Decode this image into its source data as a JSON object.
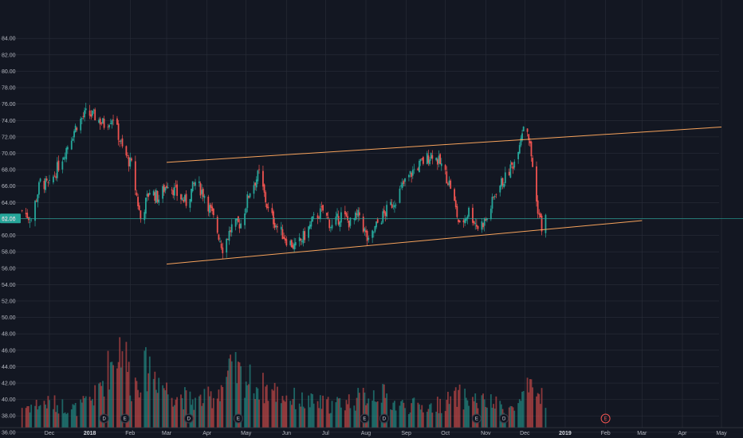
{
  "chart_data": {
    "type": "candlestick",
    "title": "",
    "xlabel": "",
    "ylabel": "",
    "ylim": [
      35.5,
      88
    ],
    "y_ticks": [
      "36.00",
      "38.00",
      "40.00",
      "42.00",
      "44.00",
      "46.00",
      "48.00",
      "50.00",
      "52.00",
      "54.00",
      "56.00",
      "58.00",
      "60.00",
      "62.00",
      "64.00",
      "66.00",
      "68.00",
      "70.00",
      "72.00",
      "74.00",
      "76.00",
      "78.00",
      "80.00",
      "82.00",
      "84.00"
    ],
    "x_ticks": [
      {
        "label": "Dec",
        "date": "2017-12-01"
      },
      {
        "label": "2018",
        "date": "2018-01-01",
        "year": true
      },
      {
        "label": "Feb",
        "date": "2018-02-01"
      },
      {
        "label": "Mar",
        "date": "2018-03-01"
      },
      {
        "label": "Apr",
        "date": "2018-04-01"
      },
      {
        "label": "May",
        "date": "2018-05-01"
      },
      {
        "label": "Jun",
        "date": "2018-06-01"
      },
      {
        "label": "Jul",
        "date": "2018-07-01"
      },
      {
        "label": "Aug",
        "date": "2018-08-01"
      },
      {
        "label": "Sep",
        "date": "2018-09-01"
      },
      {
        "label": "Oct",
        "date": "2018-10-01"
      },
      {
        "label": "Nov",
        "date": "2018-11-01"
      },
      {
        "label": "Dec",
        "date": "2018-12-01"
      },
      {
        "label": "2019",
        "date": "2019-01-01",
        "year": true
      },
      {
        "label": "Feb",
        "date": "2019-02-01"
      },
      {
        "label": "Mar",
        "date": "2019-03-01"
      },
      {
        "label": "Apr",
        "date": "2019-04-01"
      },
      {
        "label": "May",
        "date": "2019-05-01"
      }
    ],
    "last_price": "62.06",
    "price_path": [
      [
        "2017-11-10",
        63.0
      ],
      [
        "2017-11-17",
        62.0
      ],
      [
        "2017-11-24",
        66.5
      ],
      [
        "2017-12-01",
        66.0
      ],
      [
        "2017-12-08",
        68.5
      ],
      [
        "2017-12-15",
        71.0
      ],
      [
        "2017-12-22",
        73.5
      ],
      [
        "2017-12-29",
        74.8
      ],
      [
        "2018-01-05",
        74.5
      ],
      [
        "2018-01-12",
        73.5
      ],
      [
        "2018-01-19",
        74.5
      ],
      [
        "2018-01-26",
        70.5
      ],
      [
        "2018-02-02",
        68.5
      ],
      [
        "2018-02-09",
        62.0
      ],
      [
        "2018-02-16",
        65.5
      ],
      [
        "2018-02-23",
        64.5
      ],
      [
        "2018-03-02",
        66.5
      ],
      [
        "2018-03-09",
        65.0
      ],
      [
        "2018-03-16",
        64.0
      ],
      [
        "2018-03-23",
        66.5
      ],
      [
        "2018-03-30",
        65.0
      ],
      [
        "2018-04-06",
        62.0
      ],
      [
        "2018-04-13",
        58.5
      ],
      [
        "2018-04-20",
        61.0
      ],
      [
        "2018-04-27",
        61.5
      ],
      [
        "2018-05-04",
        65.5
      ],
      [
        "2018-05-11",
        67.5
      ],
      [
        "2018-05-18",
        63.0
      ],
      [
        "2018-05-25",
        61.0
      ],
      [
        "2018-06-01",
        59.5
      ],
      [
        "2018-06-08",
        58.5
      ],
      [
        "2018-06-15",
        60.0
      ],
      [
        "2018-06-22",
        62.0
      ],
      [
        "2018-06-29",
        63.0
      ],
      [
        "2018-07-06",
        61.0
      ],
      [
        "2018-07-13",
        62.5
      ],
      [
        "2018-07-20",
        61.5
      ],
      [
        "2018-07-27",
        62.5
      ],
      [
        "2018-08-03",
        59.0
      ],
      [
        "2018-08-10",
        61.5
      ],
      [
        "2018-08-17",
        63.0
      ],
      [
        "2018-08-24",
        64.5
      ],
      [
        "2018-08-31",
        66.5
      ],
      [
        "2018-09-07",
        68.0
      ],
      [
        "2018-09-14",
        69.0
      ],
      [
        "2018-09-21",
        70.0
      ],
      [
        "2018-09-28",
        68.5
      ],
      [
        "2018-10-05",
        66.0
      ],
      [
        "2018-10-12",
        61.0
      ],
      [
        "2018-10-19",
        63.0
      ],
      [
        "2018-10-26",
        61.0
      ],
      [
        "2018-11-02",
        62.0
      ],
      [
        "2018-11-09",
        65.5
      ],
      [
        "2018-11-16",
        67.0
      ],
      [
        "2018-11-23",
        69.0
      ],
      [
        "2018-11-30",
        73.5
      ],
      [
        "2018-12-03",
        73.0
      ],
      [
        "2018-12-07",
        68.5
      ],
      [
        "2018-12-10",
        64.0
      ],
      [
        "2018-12-14",
        61.0
      ],
      [
        "2018-12-17",
        62.06
      ]
    ],
    "volume": {
      "scale": "relative",
      "path": [
        [
          "2017-11-10",
          0.2
        ],
        [
          "2017-12-01",
          0.24
        ],
        [
          "2017-12-22",
          0.18
        ],
        [
          "2018-01-05",
          0.3
        ],
        [
          "2018-01-26",
          0.85
        ],
        [
          "2018-02-02",
          0.4
        ],
        [
          "2018-02-16",
          0.6
        ],
        [
          "2018-03-02",
          0.35
        ],
        [
          "2018-03-23",
          0.25
        ],
        [
          "2018-04-06",
          0.3
        ],
        [
          "2018-04-20",
          0.55
        ],
        [
          "2018-05-11",
          0.4
        ],
        [
          "2018-06-01",
          0.3
        ],
        [
          "2018-06-15",
          0.25
        ],
        [
          "2018-07-06",
          0.22
        ],
        [
          "2018-07-27",
          0.28
        ],
        [
          "2018-08-10",
          0.35
        ],
        [
          "2018-08-24",
          0.22
        ],
        [
          "2018-09-21",
          0.2
        ],
        [
          "2018-10-12",
          0.3
        ],
        [
          "2018-11-02",
          0.24
        ],
        [
          "2018-11-23",
          0.18
        ],
        [
          "2018-12-03",
          0.35
        ],
        [
          "2018-12-17",
          0.3
        ]
      ]
    },
    "trendlines": [
      {
        "name": "upper",
        "from": [
          "2018-03-01",
          68.9
        ],
        "to": [
          "2019-05-01",
          73.2
        ]
      },
      {
        "name": "lower",
        "from": [
          "2018-03-01",
          56.5
        ],
        "to": [
          "2019-03-01",
          61.8
        ]
      }
    ],
    "events": [
      {
        "label": "D",
        "date": "2018-01-12",
        "past": true
      },
      {
        "label": "E",
        "date": "2018-01-28",
        "past": true
      },
      {
        "label": "D",
        "date": "2018-03-18",
        "past": true
      },
      {
        "label": "E",
        "date": "2018-04-25",
        "past": true
      },
      {
        "label": "E",
        "date": "2018-07-31",
        "past": true
      },
      {
        "label": "D",
        "date": "2018-08-15",
        "past": true
      },
      {
        "label": "E",
        "date": "2018-10-25",
        "past": true
      },
      {
        "label": "D",
        "date": "2018-11-15",
        "past": true
      },
      {
        "label": "E",
        "date": "2019-02-01",
        "past": false
      }
    ],
    "colors": {
      "background": "#131722",
      "grid": "#2a2e39",
      "text": "#b2b5be",
      "up": "#26a69a",
      "down": "#ef5350",
      "trendline": "#f7a35c",
      "last_price": "#26a69a"
    }
  }
}
